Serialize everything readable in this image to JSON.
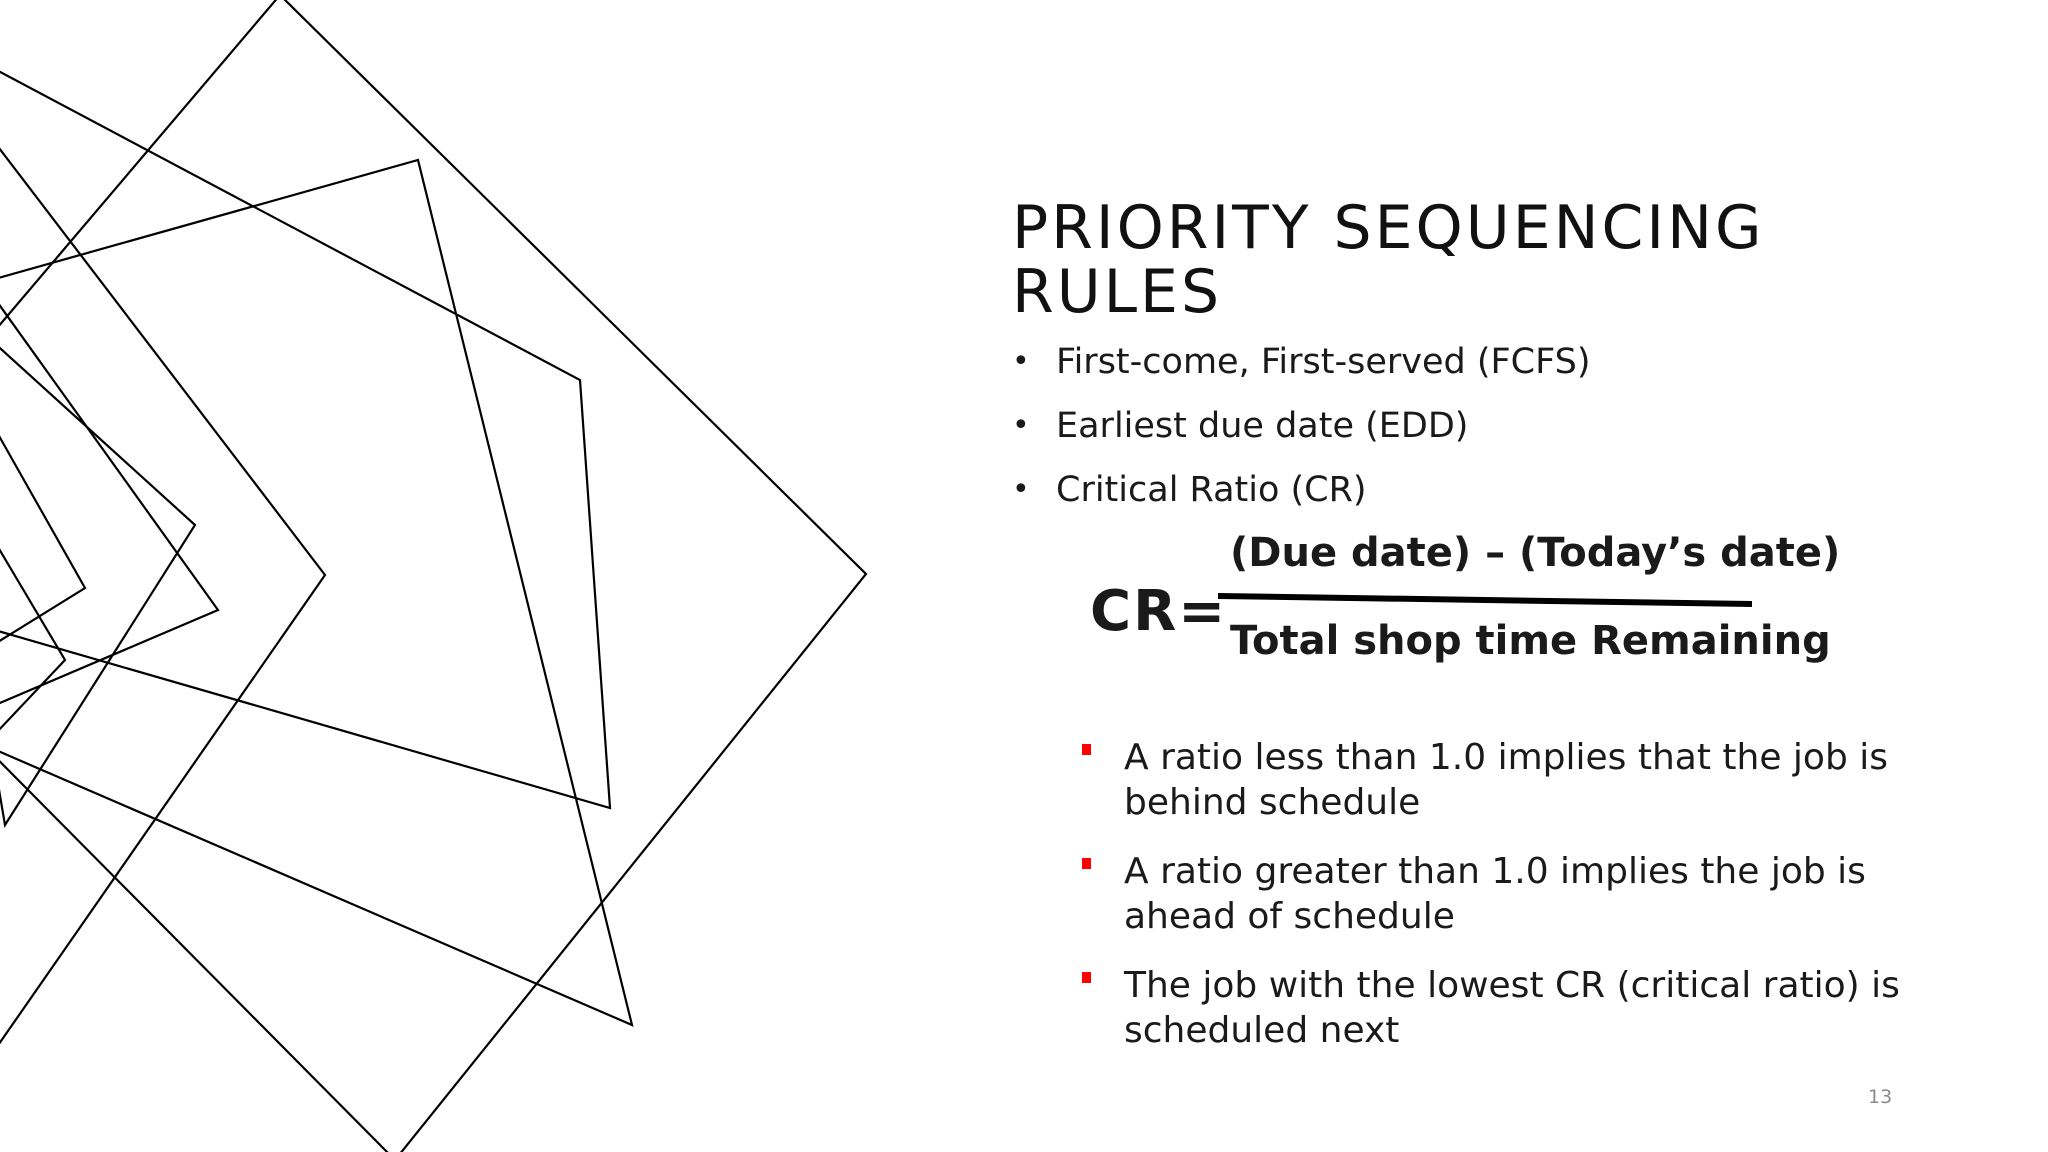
{
  "slide": {
    "title": "PRIORITY SEQUENCING RULES",
    "bullets": [
      "First-come, First-served (FCFS)",
      "Earliest due date (EDD)",
      "Critical Ratio (CR)"
    ],
    "formula": {
      "label": "CR=",
      "numerator": "(Due date) – (Today’s date)",
      "denominator": "Total shop time Remaining"
    },
    "sub_bullets": [
      "A ratio less than 1.0 implies that the job is behind schedule",
      "A ratio greater than 1.0 implies the job is ahead of schedule",
      "The job with the lowest CR (critical ratio) is scheduled next"
    ],
    "page_number": "13"
  },
  "colors": {
    "background": "#ffffff",
    "text": "#1a1a1a",
    "accent_bullet": "#ff0000",
    "line_art": "#000000",
    "page_number": "#8c8c8c"
  },
  "icons": {
    "bullet": "bullet-dot-icon",
    "sub_bullet": "red-square-bullet-icon"
  }
}
